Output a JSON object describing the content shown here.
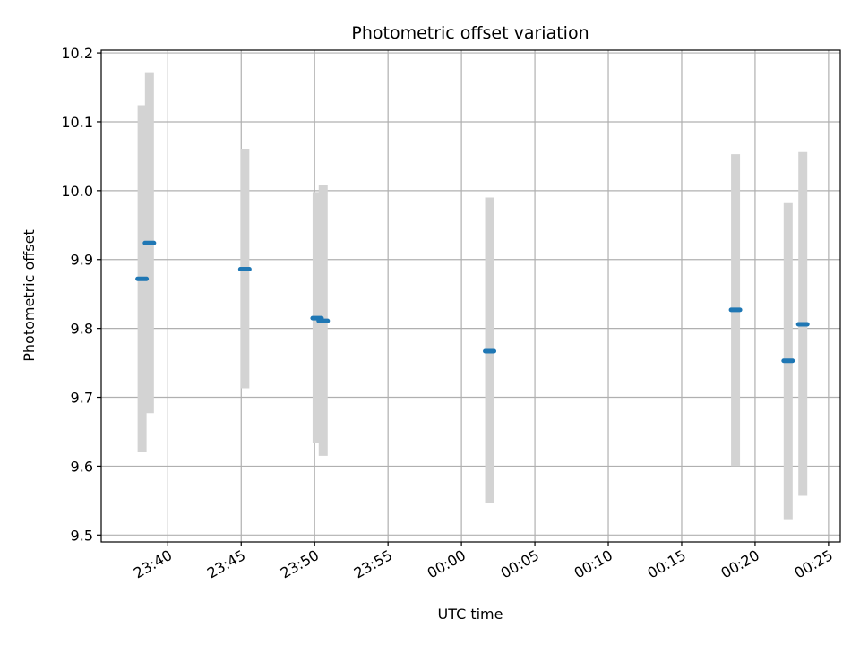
{
  "chart_data": {
    "type": "scatter",
    "title": "Photometric offset variation",
    "xlabel": "UTC time",
    "ylabel": "Photometric offset",
    "x_axis_type": "time",
    "xlim": [
      "23:35:28",
      "00:25:48"
    ],
    "ylim": [
      9.49,
      10.204
    ],
    "x_ticks": [
      "23:40",
      "23:45",
      "23:50",
      "23:55",
      "00:00",
      "00:05",
      "00:10",
      "00:15",
      "00:20",
      "00:25"
    ],
    "y_ticks": [
      "9.5",
      "9.6",
      "9.7",
      "9.8",
      "9.9",
      "10.0",
      "10.1",
      "10.2"
    ],
    "grid": true,
    "legend": "none",
    "colors": {
      "marker": "#1f77b4",
      "errorbar": "#d3d3d3",
      "grid": "#b0b0b0"
    },
    "series": [
      {
        "points": [
          {
            "x": "23:38:15",
            "y": 9.872,
            "ylow": 9.621,
            "yhigh": 10.124
          },
          {
            "x": "23:38:45",
            "y": 9.924,
            "ylow": 9.677,
            "yhigh": 10.172
          },
          {
            "x": "23:45:15",
            "y": 9.886,
            "ylow": 9.713,
            "yhigh": 10.061
          },
          {
            "x": "23:50:10",
            "y": 9.815,
            "ylow": 9.633,
            "yhigh": 9.998
          },
          {
            "x": "23:50:35",
            "y": 9.811,
            "ylow": 9.615,
            "yhigh": 10.008
          },
          {
            "x": "00:01:55",
            "y": 9.767,
            "ylow": 9.547,
            "yhigh": 9.99
          },
          {
            "x": "00:18:40",
            "y": 9.827,
            "ylow": 9.6,
            "yhigh": 10.053
          },
          {
            "x": "00:22:15",
            "y": 9.753,
            "ylow": 9.523,
            "yhigh": 9.982
          },
          {
            "x": "00:23:15",
            "y": 9.806,
            "ylow": 9.557,
            "yhigh": 10.056
          }
        ]
      }
    ]
  }
}
